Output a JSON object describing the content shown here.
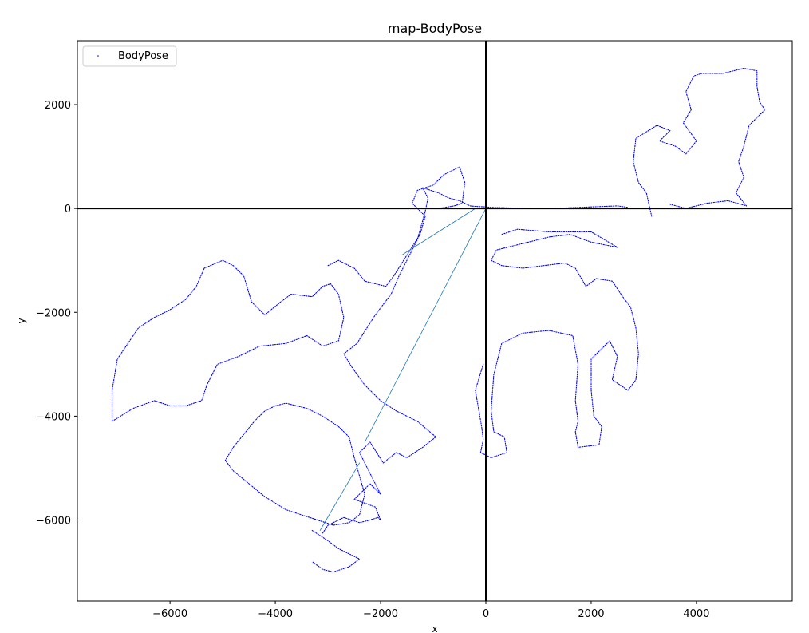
{
  "chart_data": {
    "type": "line",
    "title": "map-BodyPose",
    "xlabel": "x",
    "ylabel": "y",
    "xlim": [
      -7760,
      5820
    ],
    "ylim": [
      -7560,
      3230
    ],
    "xticks": [
      -6000,
      -4000,
      -2000,
      0,
      2000,
      4000
    ],
    "xtick_labels": [
      "−6000",
      "−4000",
      "−2000",
      "0",
      "2000",
      "4000"
    ],
    "yticks": [
      2000,
      0,
      -2000,
      -4000,
      -6000
    ],
    "ytick_labels": [
      "2000",
      "0",
      "−2000",
      "−4000",
      "−6000"
    ],
    "grid": false,
    "reference_lines": {
      "x": 0,
      "y": 0
    },
    "legend": {
      "position": "upper-left",
      "entries": [
        {
          "label": "BodyPose",
          "marker": "dot",
          "color": "#0000ff"
        }
      ]
    },
    "series": [
      {
        "name": "BodyPose",
        "color": "#0000ff",
        "style": "dotted-trajectory",
        "points": [
          [
            -3100,
            -6250
          ],
          [
            -3000,
            -6100
          ],
          [
            -2700,
            -5950
          ],
          [
            -2400,
            -6050
          ],
          [
            -2200,
            -6000
          ],
          [
            -2050,
            -5950
          ],
          [
            -2000,
            -6000
          ],
          [
            -2100,
            -5750
          ],
          [
            -2500,
            -5600
          ],
          [
            -2200,
            -5300
          ],
          [
            -2000,
            -5500
          ],
          [
            -2200,
            -5100
          ],
          [
            -2400,
            -4700
          ],
          [
            -2200,
            -4500
          ],
          [
            -1950,
            -4900
          ],
          [
            -1700,
            -4700
          ],
          [
            -1500,
            -4800
          ],
          [
            -1200,
            -4600
          ],
          [
            -950,
            -4400
          ],
          [
            -1300,
            -4100
          ],
          [
            -1700,
            -3900
          ],
          [
            -2000,
            -3700
          ],
          [
            -2300,
            -3400
          ],
          [
            -2550,
            -3050
          ],
          [
            -2700,
            -2800
          ],
          [
            -2450,
            -2600
          ],
          [
            -2100,
            -2050
          ],
          [
            -1800,
            -1650
          ],
          [
            -1650,
            -1300
          ],
          [
            -1300,
            -600
          ],
          [
            -1150,
            -50
          ],
          [
            -1100,
            200
          ],
          [
            -1200,
            400
          ],
          [
            -900,
            300
          ],
          [
            -700,
            200
          ],
          [
            -500,
            150
          ],
          [
            -300,
            50
          ],
          [
            -200,
            40
          ],
          [
            0,
            30
          ],
          [
            100,
            20
          ],
          [
            500,
            10
          ],
          [
            1000,
            0
          ],
          [
            1500,
            10
          ],
          [
            2000,
            30
          ],
          [
            2500,
            50
          ],
          [
            2700,
            20
          ]
        ]
      },
      {
        "name": "",
        "color": "#0000ff",
        "style": "dotted-trajectory",
        "points": [
          [
            3150,
            -150
          ],
          [
            3050,
            300
          ],
          [
            2900,
            500
          ],
          [
            2800,
            900
          ],
          [
            2850,
            1350
          ],
          [
            3250,
            1600
          ],
          [
            3500,
            1500
          ],
          [
            3300,
            1300
          ],
          [
            3600,
            1200
          ],
          [
            3800,
            1050
          ],
          [
            4000,
            1300
          ],
          [
            3750,
            1650
          ],
          [
            3900,
            1900
          ],
          [
            3800,
            2250
          ],
          [
            3950,
            2550
          ],
          [
            4100,
            2600
          ],
          [
            4500,
            2600
          ],
          [
            4900,
            2700
          ],
          [
            5150,
            2650
          ],
          [
            5150,
            2350
          ],
          [
            5200,
            2050
          ],
          [
            5300,
            1900
          ],
          [
            5000,
            1600
          ],
          [
            4900,
            1200
          ],
          [
            4800,
            900
          ],
          [
            4900,
            600
          ],
          [
            4750,
            300
          ],
          [
            4950,
            50
          ],
          [
            4600,
            150
          ],
          [
            4200,
            100
          ],
          [
            3800,
            0
          ],
          [
            3500,
            80
          ]
        ]
      },
      {
        "name": "",
        "color": "#0000ff",
        "style": "dotted-trajectory",
        "points": [
          [
            -3000,
            -1100
          ],
          [
            -2800,
            -1000
          ],
          [
            -2500,
            -1150
          ],
          [
            -2300,
            -1400
          ],
          [
            -1900,
            -1500
          ],
          [
            -1750,
            -1300
          ],
          [
            -1500,
            -900
          ],
          [
            -1250,
            -500
          ],
          [
            -1150,
            -150
          ],
          [
            -1400,
            100
          ],
          [
            -1300,
            350
          ],
          [
            -1000,
            450
          ],
          [
            -800,
            650
          ],
          [
            -500,
            800
          ],
          [
            -400,
            500
          ],
          [
            -450,
            100
          ],
          [
            -600,
            50
          ],
          [
            -900,
            0
          ]
        ]
      },
      {
        "name": "",
        "color": "#0000ff",
        "style": "dotted-trajectory",
        "points": [
          [
            -5350,
            -1150
          ],
          [
            -5000,
            -1000
          ],
          [
            -4800,
            -1100
          ],
          [
            -4600,
            -1300
          ],
          [
            -4450,
            -1800
          ],
          [
            -4200,
            -2050
          ],
          [
            -3900,
            -1800
          ],
          [
            -3700,
            -1650
          ],
          [
            -3300,
            -1700
          ],
          [
            -3100,
            -1500
          ],
          [
            -2950,
            -1450
          ],
          [
            -2800,
            -1650
          ],
          [
            -2700,
            -2100
          ],
          [
            -2800,
            -2550
          ],
          [
            -3100,
            -2650
          ],
          [
            -3400,
            -2450
          ],
          [
            -3800,
            -2600
          ],
          [
            -4300,
            -2650
          ],
          [
            -4700,
            -2850
          ],
          [
            -5100,
            -3000
          ],
          [
            -5300,
            -3400
          ],
          [
            -5400,
            -3700
          ],
          [
            -5700,
            -3800
          ],
          [
            -6000,
            -3800
          ],
          [
            -6300,
            -3700
          ],
          [
            -6700,
            -3850
          ],
          [
            -7100,
            -4100
          ],
          [
            -7100,
            -3500
          ],
          [
            -7000,
            -2900
          ],
          [
            -6800,
            -2600
          ],
          [
            -6600,
            -2300
          ],
          [
            -6300,
            -2100
          ],
          [
            -6000,
            -1950
          ],
          [
            -5700,
            -1750
          ],
          [
            -5500,
            -1500
          ],
          [
            -5350,
            -1150
          ]
        ]
      },
      {
        "name": "",
        "color": "#0000ff",
        "style": "dotted-trajectory",
        "points": [
          [
            -4000,
            -3800
          ],
          [
            -3800,
            -3750
          ],
          [
            -3400,
            -3850
          ],
          [
            -3100,
            -4000
          ],
          [
            -2800,
            -4200
          ],
          [
            -2600,
            -4400
          ],
          [
            -2500,
            -4800
          ],
          [
            -2400,
            -5150
          ],
          [
            -2300,
            -5500
          ],
          [
            -2400,
            -5900
          ],
          [
            -2600,
            -6050
          ],
          [
            -2900,
            -6100
          ],
          [
            -3200,
            -6000
          ],
          [
            -3500,
            -5900
          ],
          [
            -3800,
            -5800
          ],
          [
            -4200,
            -5550
          ],
          [
            -4500,
            -5300
          ],
          [
            -4800,
            -5050
          ],
          [
            -4950,
            -4850
          ],
          [
            -4800,
            -4600
          ],
          [
            -4600,
            -4350
          ],
          [
            -4400,
            -4100
          ],
          [
            -4200,
            -3900
          ],
          [
            -4000,
            -3800
          ]
        ]
      },
      {
        "name": "",
        "color": "#0000ff",
        "style": "dotted-trajectory",
        "points": [
          [
            -3300,
            -6200
          ],
          [
            -3000,
            -6400
          ],
          [
            -2800,
            -6550
          ],
          [
            -2600,
            -6650
          ],
          [
            -2400,
            -6750
          ],
          [
            -2600,
            -6900
          ],
          [
            -2900,
            -7000
          ],
          [
            -3100,
            -6950
          ],
          [
            -3300,
            -6800
          ]
        ]
      },
      {
        "name": "",
        "color": "#0000ff",
        "style": "dotted-trajectory",
        "points": [
          [
            -50,
            -3000
          ],
          [
            -200,
            -3500
          ],
          [
            -80,
            -4200
          ],
          [
            -50,
            -4450
          ],
          [
            -100,
            -4700
          ],
          [
            100,
            -4800
          ],
          [
            400,
            -4700
          ],
          [
            350,
            -4400
          ],
          [
            150,
            -4300
          ],
          [
            100,
            -3900
          ],
          [
            150,
            -3200
          ],
          [
            300,
            -2600
          ],
          [
            700,
            -2400
          ],
          [
            1200,
            -2350
          ],
          [
            1650,
            -2450
          ],
          [
            1750,
            -3000
          ],
          [
            1700,
            -3700
          ],
          [
            1750,
            -4100
          ],
          [
            1700,
            -4300
          ],
          [
            1750,
            -4600
          ],
          [
            2150,
            -4550
          ],
          [
            2200,
            -4200
          ],
          [
            2050,
            -4000
          ],
          [
            2000,
            -3500
          ],
          [
            2000,
            -2900
          ],
          [
            2300,
            -2600
          ],
          [
            2350,
            -2550
          ],
          [
            2500,
            -2850
          ],
          [
            2400,
            -3300
          ],
          [
            2700,
            -3500
          ],
          [
            2850,
            -3300
          ],
          [
            2900,
            -2800
          ],
          [
            2850,
            -2300
          ],
          [
            2750,
            -1900
          ],
          [
            2600,
            -1700
          ],
          [
            2400,
            -1400
          ],
          [
            2100,
            -1350
          ],
          [
            1900,
            -1500
          ],
          [
            1700,
            -1150
          ],
          [
            1500,
            -1050
          ],
          [
            1100,
            -1100
          ],
          [
            700,
            -1150
          ],
          [
            300,
            -1100
          ],
          [
            100,
            -1000
          ],
          [
            200,
            -800
          ],
          [
            600,
            -700
          ],
          [
            1200,
            -550
          ],
          [
            1600,
            -500
          ],
          [
            2000,
            -650
          ],
          [
            2500,
            -750
          ],
          [
            2000,
            -450
          ],
          [
            1200,
            -450
          ],
          [
            600,
            -400
          ],
          [
            300,
            -500
          ]
        ]
      },
      {
        "name": "",
        "color": "#1f77b4",
        "style": "thin-line",
        "points": [
          [
            0,
            0
          ],
          [
            -2300,
            -4500
          ]
        ]
      },
      {
        "name": "",
        "color": "#1f77b4",
        "style": "thin-line",
        "points": [
          [
            -3150,
            -6200
          ],
          [
            -2400,
            -4900
          ]
        ]
      },
      {
        "name": "",
        "color": "#1f77b4",
        "style": "thin-line",
        "points": [
          [
            -200,
            0
          ],
          [
            -1600,
            -900
          ]
        ]
      }
    ]
  }
}
